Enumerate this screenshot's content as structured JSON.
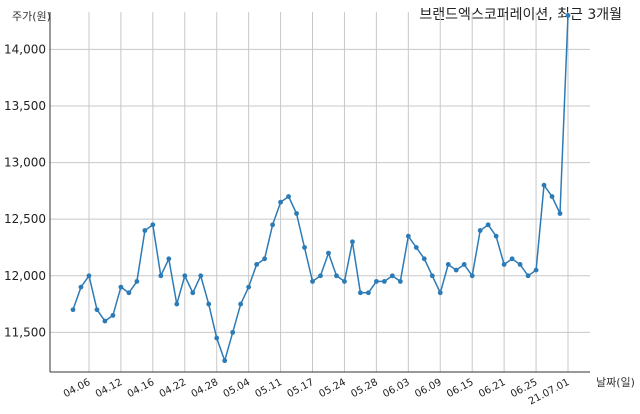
{
  "chart_data": {
    "type": "line",
    "title": "브랜드엑스코퍼레이션, 최근 3개월",
    "ylabel": "주가(원)",
    "xlabel": "날짜(일)",
    "ylim": [
      11150,
      14330
    ],
    "yticks": [
      11500,
      12000,
      12500,
      13000,
      13500,
      14000
    ],
    "ytick_labels": [
      "11,500",
      "12,000",
      "12,500",
      "13,000",
      "13,500",
      "14,000"
    ],
    "xtick_labels": [
      {
        "label": "04.06",
        "index": 2
      },
      {
        "label": "04.12",
        "index": 6
      },
      {
        "label": "04.16",
        "index": 10
      },
      {
        "label": "04.22",
        "index": 14
      },
      {
        "label": "04.28",
        "index": 18
      },
      {
        "label": "05.04",
        "index": 22
      },
      {
        "label": "05.11",
        "index": 26
      },
      {
        "label": "05.17",
        "index": 30
      },
      {
        "label": "05.24",
        "index": 34
      },
      {
        "label": "05.28",
        "index": 38
      },
      {
        "label": "06.03",
        "index": 42
      },
      {
        "label": "06.09",
        "index": 46
      },
      {
        "label": "06.15",
        "index": 50
      },
      {
        "label": "06.21",
        "index": 54
      },
      {
        "label": "06.25",
        "index": 58
      },
      {
        "label": "21.07.01",
        "index": 62
      }
    ],
    "grid": true,
    "series": [
      {
        "color": "#2c7bb6",
        "values": [
          11700,
          11900,
          12000,
          11700,
          11600,
          11650,
          11900,
          11850,
          11950,
          12400,
          12450,
          12000,
          12150,
          11750,
          12000,
          11850,
          12000,
          11750,
          11450,
          11250,
          11500,
          11750,
          11900,
          12100,
          12150,
          12450,
          12650,
          12700,
          12550,
          12250,
          11950,
          12000,
          12200,
          12000,
          11950,
          12300,
          11850,
          11850,
          11950,
          11950,
          12000,
          11950,
          12350,
          12250,
          12150,
          12000,
          11850,
          12100,
          12050,
          12100,
          12000,
          12400,
          12450,
          12350,
          12100,
          12150,
          12100,
          12000,
          12050,
          12800,
          12700,
          12550,
          14300
        ]
      }
    ]
  }
}
